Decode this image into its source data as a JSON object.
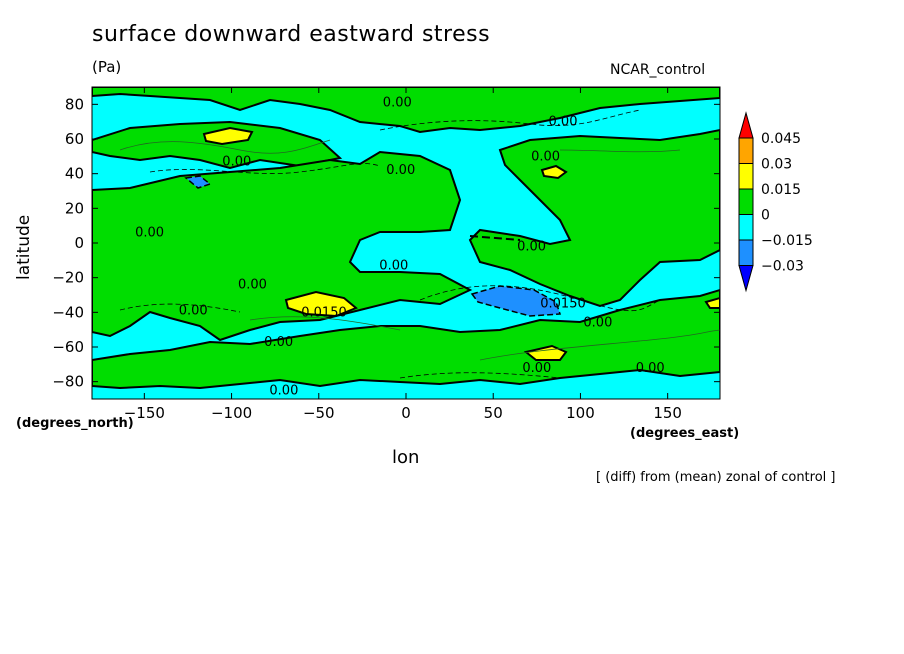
{
  "chart_data": {
    "type": "heatmap",
    "title": "surface downward eastward stress",
    "units": "(Pa)",
    "source_label": "NCAR_control",
    "xlabel": "lon",
    "ylabel": "latitude",
    "x_units": "(degrees_east)",
    "y_units": "(degrees_north)",
    "note": "[ (diff) from (mean) zonal of control ]",
    "xlim": [
      -180,
      180
    ],
    "ylim": [
      -90,
      90
    ],
    "x_ticks": [
      -150,
      -100,
      -50,
      0,
      50,
      100,
      150
    ],
    "y_ticks": [
      80,
      60,
      40,
      20,
      0,
      -20,
      -40,
      -60,
      -80
    ],
    "x_tick_labels": [
      "−150",
      "−100",
      "−50",
      "0",
      "50",
      "100",
      "150"
    ],
    "y_tick_labels": [
      "80",
      "60",
      "40",
      "20",
      "0",
      "−20",
      "−40",
      "−60",
      "−80"
    ],
    "colorbar": {
      "levels": [
        0.045,
        0.03,
        0.015,
        0,
        -0.015,
        -0.03
      ],
      "labels": [
        "0.045",
        "0.03",
        "0.015",
        "0",
        "−0.015",
        "−0.03"
      ],
      "colors": [
        "#ff0000",
        "#ffa500",
        "#ffff00",
        "#00dd00",
        "#00ffff",
        "#1e90ff",
        "#0000ff"
      ]
    },
    "contour_labels": [
      {
        "text": "0.00",
        "lon": -5,
        "lat": 81
      },
      {
        "text": "0.00",
        "lon": 90,
        "lat": 70
      },
      {
        "text": "0.00",
        "lon": -97,
        "lat": 47
      },
      {
        "text": "0.00",
        "lon": 80,
        "lat": 50
      },
      {
        "text": "0.00",
        "lon": -3,
        "lat": 42
      },
      {
        "text": "0.00",
        "lon": -147,
        "lat": 6
      },
      {
        "text": "0.00",
        "lon": 72,
        "lat": -2
      },
      {
        "text": "0.00",
        "lon": -7,
        "lat": -13
      },
      {
        "text": "0.00",
        "lon": -88,
        "lat": -24
      },
      {
        "text": "0.00",
        "lon": -122,
        "lat": -39
      },
      {
        "text": "0.0150",
        "lon": -47,
        "lat": -40
      },
      {
        "text": "0.0150",
        "lon": 90,
        "lat": -35
      },
      {
        "text": "0.00",
        "lon": 110,
        "lat": -46
      },
      {
        "text": "0.00",
        "lon": -73,
        "lat": -57
      },
      {
        "text": "0.00",
        "lon": 75,
        "lat": -72
      },
      {
        "text": "0.00",
        "lon": 140,
        "lat": -72
      },
      {
        "text": "0.00",
        "lon": -70,
        "lat": -85
      }
    ]
  }
}
